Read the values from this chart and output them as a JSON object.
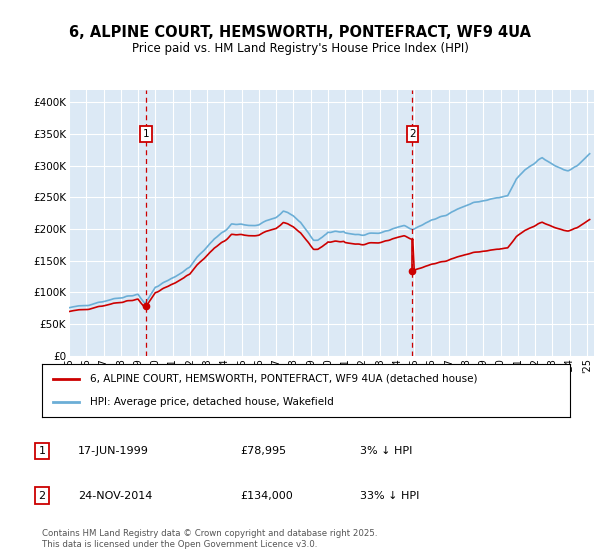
{
  "title_line1": "6, ALPINE COURT, HEMSWORTH, PONTEFRACT, WF9 4UA",
  "title_line2": "Price paid vs. HM Land Registry's House Price Index (HPI)",
  "legend_line1": "6, ALPINE COURT, HEMSWORTH, PONTEFRACT, WF9 4UA (detached house)",
  "legend_line2": "HPI: Average price, detached house, Wakefield",
  "footnote": "Contains HM Land Registry data © Crown copyright and database right 2025.\nThis data is licensed under the Open Government Licence v3.0.",
  "annotation1": {
    "label": "1",
    "date": "1999-06-17",
    "price": 78995,
    "text": "17-JUN-1999",
    "price_text": "£78,995",
    "pct_text": "3% ↓ HPI"
  },
  "annotation2": {
    "label": "2",
    "date": "2014-11-24",
    "price": 134000,
    "text": "24-NOV-2014",
    "price_text": "£134,000",
    "pct_text": "33% ↓ HPI"
  },
  "ylim": [
    0,
    420000
  ],
  "yticks": [
    0,
    50000,
    100000,
    150000,
    200000,
    250000,
    300000,
    350000,
    400000
  ],
  "ytick_labels": [
    "£0",
    "£50K",
    "£100K",
    "£150K",
    "£200K",
    "£250K",
    "£300K",
    "£350K",
    "£400K"
  ],
  "background_color": "#dce9f5",
  "hpi_color": "#6baed6",
  "price_color": "#cc0000",
  "vline_color": "#cc0000",
  "annotation_box_color": "#cc0000",
  "grid_color": "#ffffff",
  "sale_dates": [
    "1999-06-17",
    "2014-11-24"
  ],
  "sale_prices": [
    78995,
    134000
  ],
  "xmin": "1995-01-01",
  "xmax": "2025-06-01"
}
